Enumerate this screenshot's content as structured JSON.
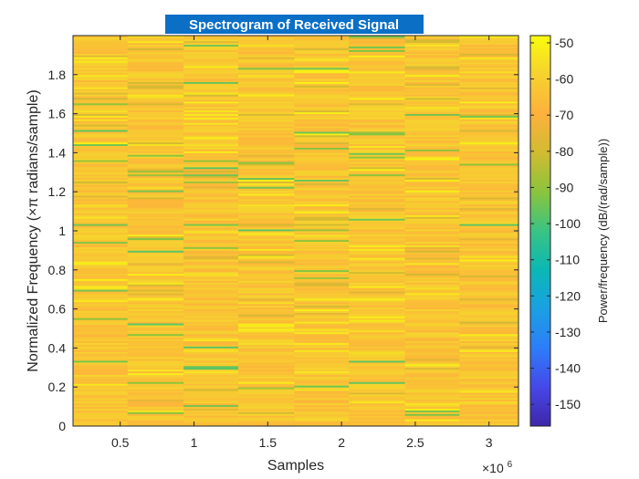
{
  "chart_data": {
    "type": "heatmap",
    "title": "Spectrogram of Received Signal",
    "xlabel": "Samples",
    "ylabel": "Normalized Frequency (×π radians/sample)",
    "x_exponent_base": "×10",
    "x_exponent": "6",
    "xlim": [
      0.18,
      3.2
    ],
    "ylim": [
      0,
      2
    ],
    "x_ticks": [
      0.5,
      1,
      1.5,
      2,
      2.5,
      3
    ],
    "x_tick_labels": [
      "0.5",
      "1",
      "1.5",
      "2",
      "2.5",
      "3"
    ],
    "y_ticks": [
      0,
      0.2,
      0.4,
      0.6,
      0.8,
      1,
      1.2,
      1.4,
      1.6,
      1.8
    ],
    "y_tick_labels": [
      "0",
      "0.2",
      "0.4",
      "0.6",
      "0.8",
      "1",
      "1.2",
      "1.4",
      "1.6",
      "1.8"
    ],
    "time_segments": [
      0.18,
      0.55,
      0.93,
      1.3,
      1.68,
      2.05,
      2.43,
      2.8,
      3.2
    ],
    "frequency_bins": 220,
    "value_range": [
      -156,
      -48
    ],
    "typical_level": -63,
    "colormap": "parula",
    "colormap_stops": [
      "#3e26a8",
      "#4648e9",
      "#2d7df9",
      "#1aa0e3",
      "#0bb8b5",
      "#3ac383",
      "#8bc43c",
      "#d1bb31",
      "#fdb13c",
      "#f6d22f",
      "#f9fb0e"
    ],
    "colorbar": {
      "label": "Power/frequency (dB/(rad/sample))",
      "ticks": [
        -50,
        -60,
        -70,
        -80,
        -90,
        -100,
        -110,
        -120,
        -130,
        -140,
        -150
      ],
      "tick_labels": [
        "-50",
        "-60",
        "-70",
        "-80",
        "-90",
        "-100",
        "-110",
        "-120",
        "-130",
        "-140",
        "-150"
      ]
    },
    "grid": false,
    "title_highlighted": true,
    "title_highlight_color": "#0b6fc6"
  }
}
